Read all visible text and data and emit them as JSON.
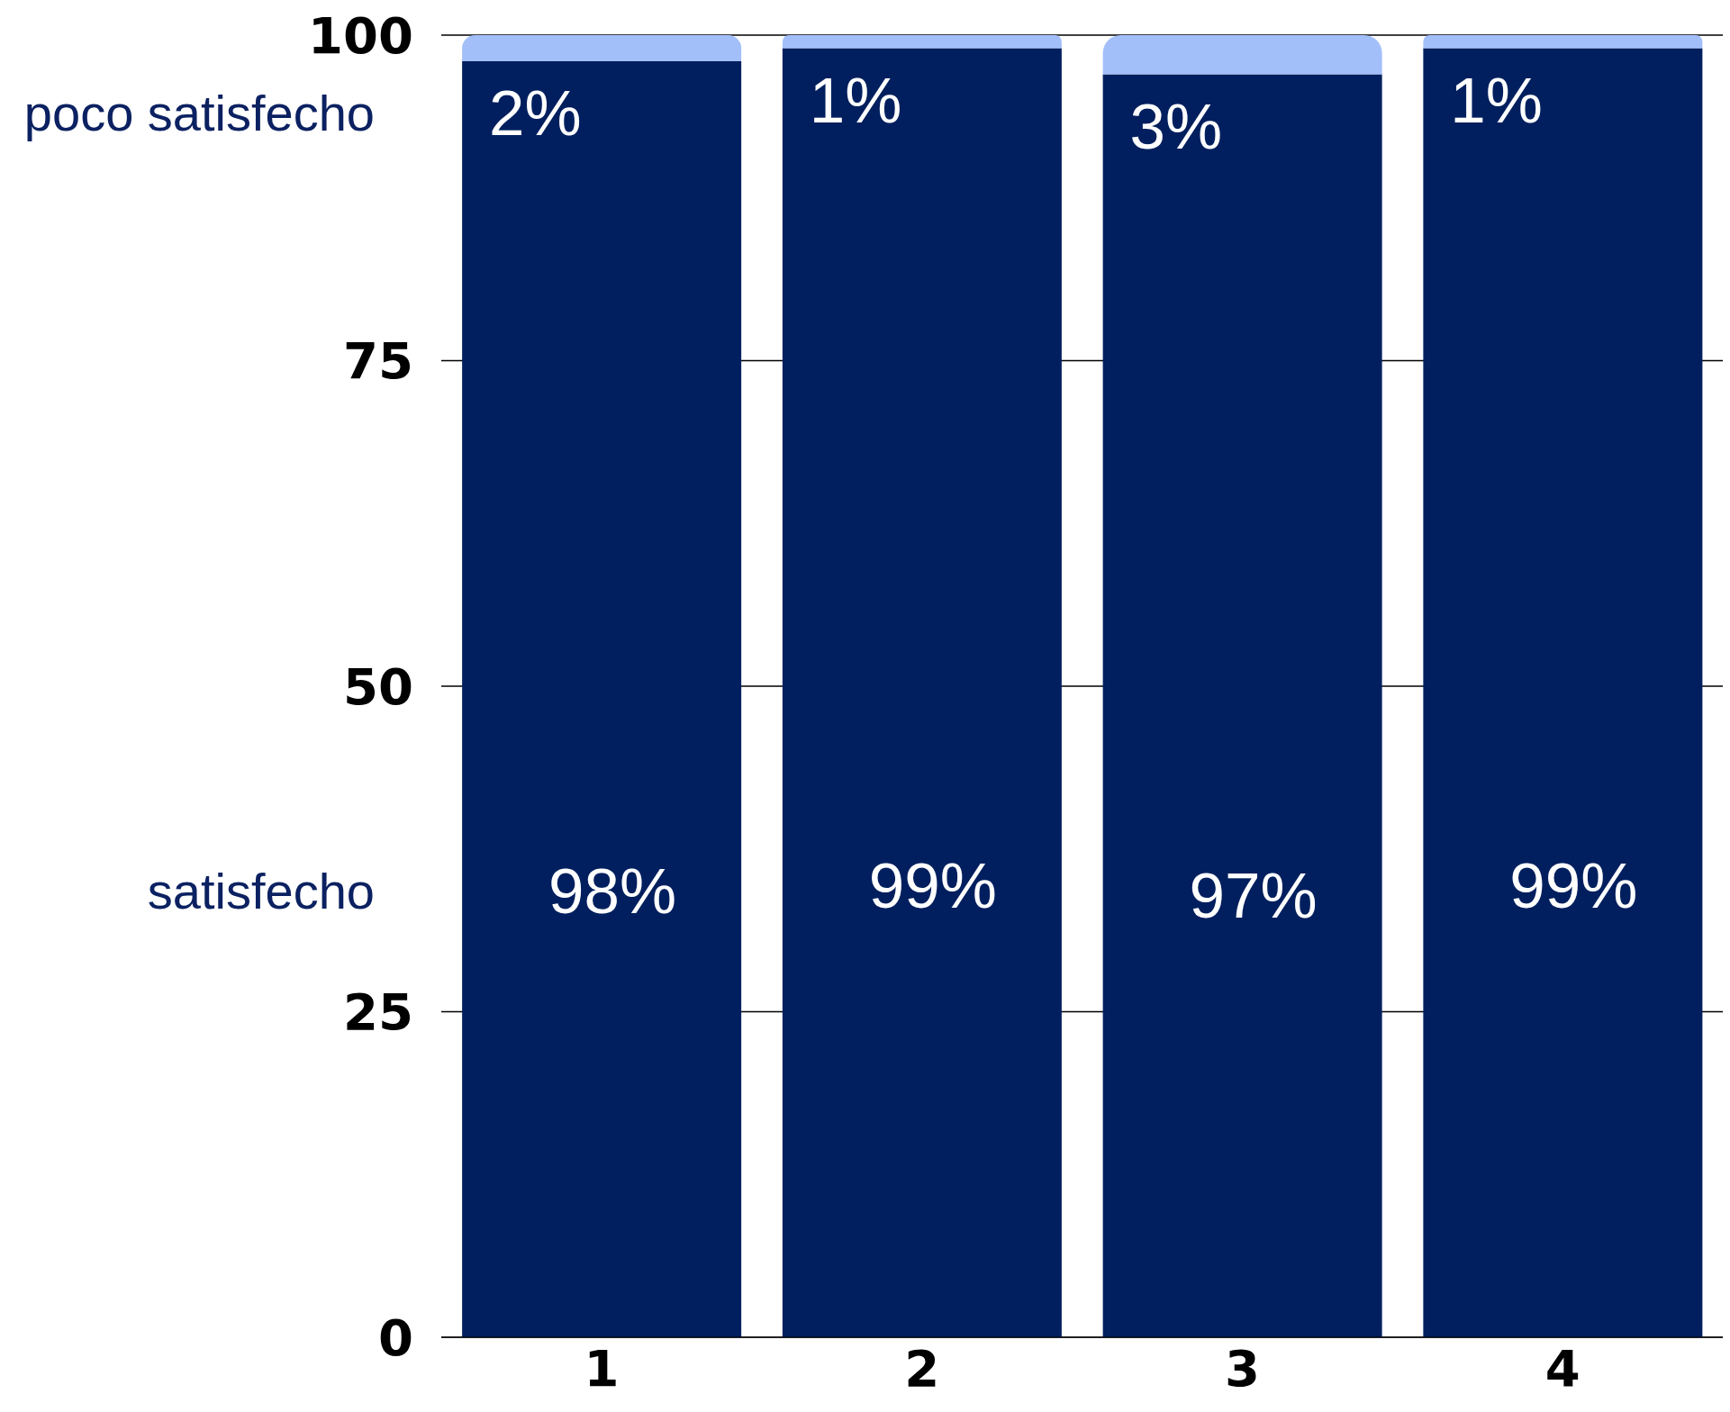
{
  "chart_data": {
    "type": "bar",
    "categories": [
      "1",
      "2",
      "3",
      "4"
    ],
    "series": [
      {
        "name": "satisfecho",
        "color": "#011f5e",
        "values": [
          98,
          99,
          97,
          99
        ],
        "value_labels": [
          "98%",
          "99%",
          "97%",
          "99%"
        ]
      },
      {
        "name": "poco satisfecho",
        "color": "#a3bffa",
        "values": [
          2,
          1,
          3,
          1
        ],
        "value_labels": [
          "2%",
          "1%",
          "3%",
          "1%"
        ]
      }
    ],
    "stacked": true,
    "ylim": [
      0,
      100
    ],
    "yticks": [
      0,
      25,
      50,
      75,
      100
    ],
    "grid": "y"
  }
}
